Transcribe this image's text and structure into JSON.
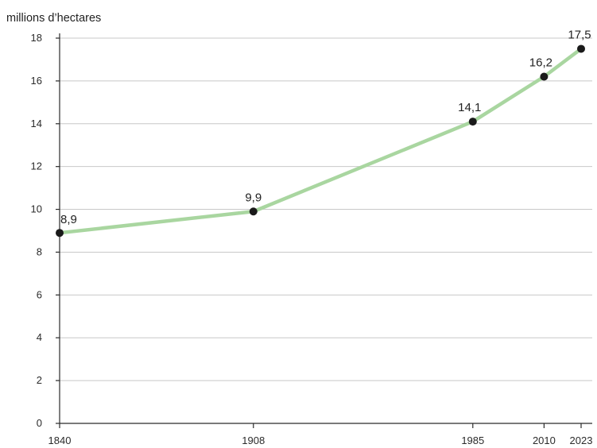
{
  "chart_data": {
    "type": "line",
    "title": "",
    "ylabel": "millions d’hectares",
    "xlabel": "",
    "x": [
      1840,
      1908,
      1985,
      2010,
      2023
    ],
    "x_tick_labels": [
      "1840",
      "1908",
      "1985",
      "2010",
      "2023"
    ],
    "series": [
      {
        "values": [
          8.9,
          9.9,
          14.1,
          16.2,
          17.5
        ],
        "labels": [
          "8,9",
          "9,9",
          "14,1",
          "16,2",
          "17,5"
        ]
      }
    ],
    "xlim": [
      1840,
      2023
    ],
    "ylim": [
      0,
      18
    ],
    "y_ticks": [
      0,
      2,
      4,
      6,
      8,
      10,
      12,
      14,
      16,
      18
    ],
    "y_tick_labels": [
      "0",
      "2",
      "4",
      "6",
      "8",
      "10",
      "12",
      "14",
      "16",
      "18"
    ],
    "grid": "horizontal",
    "legend": "none",
    "colors": {
      "line": "#a9d6a0",
      "marker": "#1a1a1a",
      "grid": "#c8c8c8",
      "axis": "#2b2b2b"
    }
  }
}
